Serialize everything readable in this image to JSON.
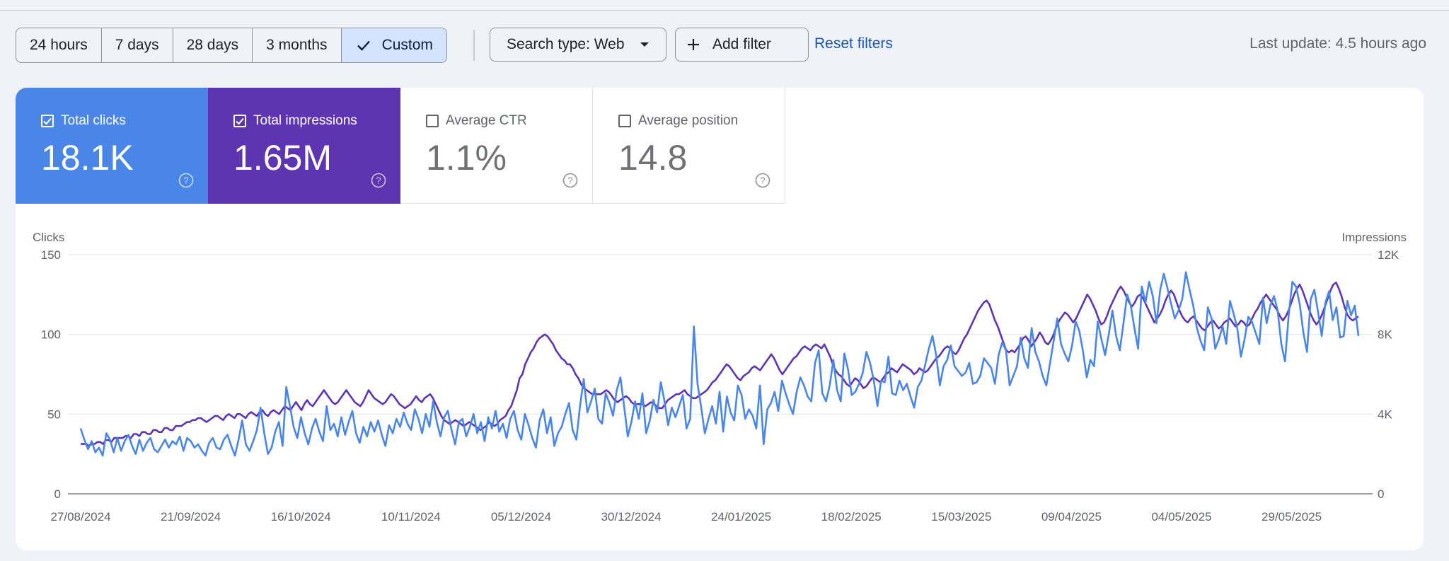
{
  "toolbar": {
    "ranges": [
      "24 hours",
      "7 days",
      "28 days",
      "3 months",
      "Custom"
    ],
    "active_range": "Custom",
    "search_type_label": "Search type: Web",
    "add_filter_label": "Add filter",
    "reset_label": "Reset filters",
    "last_update": "Last update: 4.5 hours ago"
  },
  "metrics": [
    {
      "label": "Total clicks",
      "value": "18.1K",
      "checked": true,
      "color": "#4a86e8"
    },
    {
      "label": "Total impressions",
      "value": "1.65M",
      "checked": true,
      "color": "#5e35b1"
    },
    {
      "label": "Average CTR",
      "value": "1.1%",
      "checked": false
    },
    {
      "label": "Average position",
      "value": "14.8",
      "checked": false
    }
  ],
  "chart_data": {
    "type": "line",
    "left_axis_title": "Clicks",
    "right_axis_title": "Impressions",
    "ylim_left": [
      0,
      150
    ],
    "ylim_right": [
      0,
      12000
    ],
    "left_ticks": [
      "0",
      "50",
      "100",
      "150"
    ],
    "right_ticks": [
      "0",
      "4K",
      "8K",
      "12K"
    ],
    "x_tick_labels": [
      "27/08/2024",
      "21/09/2024",
      "16/10/2024",
      "10/11/2024",
      "05/12/2024",
      "30/12/2024",
      "24/01/2025",
      "18/02/2025",
      "15/03/2025",
      "09/04/2025",
      "04/05/2025",
      "29/05/2025"
    ],
    "x_range": [
      "27/08/2024",
      "18/06/2025"
    ],
    "grid": true,
    "series": [
      {
        "axis": "left",
        "color": "#4a86e8",
        "values": [
          41,
          34,
          28,
          33,
          26,
          29,
          24,
          38,
          34,
          26,
          35,
          27,
          33,
          37,
          30,
          25,
          34,
          27,
          32,
          35,
          28,
          26,
          30,
          34,
          29,
          33,
          31,
          36,
          27,
          35,
          33,
          29,
          31,
          27,
          24,
          32,
          35,
          29,
          28,
          34,
          37,
          30,
          24,
          34,
          46,
          31,
          27,
          33,
          40,
          54,
          38,
          25,
          29,
          39,
          45,
          30,
          67,
          55,
          42,
          35,
          48,
          38,
          31,
          41,
          47,
          39,
          33,
          55,
          40,
          44,
          36,
          48,
          37,
          45,
          52,
          38,
          32,
          42,
          36,
          45,
          39,
          46,
          37,
          30,
          43,
          38,
          47,
          42,
          51,
          44,
          40,
          53,
          47,
          38,
          50,
          42,
          58,
          45,
          36,
          48,
          52,
          40,
          31,
          45,
          47,
          36,
          42,
          50,
          38,
          45,
          33,
          48,
          41,
          52,
          39,
          44,
          35,
          47,
          52,
          40,
          34,
          50,
          43,
          35,
          29,
          46,
          53,
          38,
          48,
          30,
          38,
          42,
          50,
          57,
          40,
          34,
          55,
          72,
          51,
          58,
          66,
          47,
          44,
          63,
          57,
          49,
          65,
          73,
          55,
          36,
          45,
          58,
          47,
          63,
          38,
          46,
          59,
          51,
          70,
          58,
          43,
          54,
          48,
          55,
          62,
          41,
          47,
          105,
          69,
          54,
          38,
          47,
          55,
          44,
          64,
          39,
          61,
          51,
          46,
          68,
          62,
          47,
          53,
          49,
          41,
          68,
          31,
          53,
          57,
          64,
          52,
          71,
          63,
          56,
          50,
          64,
          73,
          68,
          61,
          58,
          82,
          90,
          63,
          58,
          68,
          84,
          65,
          58,
          88,
          78,
          62,
          64,
          69,
          76,
          89,
          82,
          71,
          55,
          71,
          70,
          86,
          63,
          62,
          71,
          65,
          69,
          61,
          54,
          67,
          71,
          81,
          91,
          99,
          87,
          68,
          80,
          84,
          93,
          80,
          77,
          74,
          76,
          82,
          69,
          70,
          74,
          85,
          82,
          79,
          69,
          87,
          95,
          90,
          68,
          74,
          80,
          98,
          85,
          79,
          104,
          89,
          83,
          74,
          68,
          82,
          96,
          110,
          94,
          88,
          83,
          93,
          108,
          102,
          89,
          73,
          84,
          80,
          108,
          97,
          87,
          100,
          115,
          99,
          90,
          107,
          125,
          118,
          104,
          91,
          130,
          120,
          133,
          124,
          107,
          128,
          138,
          129,
          119,
          110,
          115,
          122,
          139,
          128,
          118,
          104,
          96,
          90,
          117,
          110,
          91,
          97,
          105,
          94,
          121,
          113,
          104,
          86,
          97,
          111,
          108,
          101,
          94,
          123,
          107,
          118,
          124,
          115,
          94,
          83,
          112,
          133,
          130,
          119,
          101,
          89,
          122,
          128,
          114,
          99,
          120,
          127,
          109,
          117,
          98,
          99,
          121,
          112,
          118,
          99
        ]
      },
      {
        "axis": "right",
        "color": "#5e35b1",
        "values": [
          2.5,
          2.5,
          2.5,
          2.4,
          2.5,
          2.5,
          2.6,
          2.6,
          2.5,
          2.7,
          2.7,
          2.6,
          2.8,
          2.8,
          2.8,
          2.8,
          2.9,
          2.9,
          2.8,
          3.0,
          3.0,
          2.9,
          3.1,
          3.1,
          3.0,
          3.0,
          3.2,
          3.2,
          3.1,
          3.1,
          3.3,
          3.3,
          3.2,
          3.2,
          3.4,
          3.4,
          3.4,
          3.5,
          3.6,
          3.6,
          3.7,
          3.7,
          3.8,
          3.8,
          3.7,
          3.6,
          3.7,
          3.8,
          3.9,
          3.9,
          3.8,
          3.7,
          3.9,
          4.0,
          3.9,
          3.8,
          4.0,
          4.0,
          3.9,
          3.8,
          4.0,
          4.1,
          4.0,
          3.9,
          4.1,
          4.2,
          4.0,
          3.9,
          4.1,
          4.2,
          4.1,
          4.0,
          4.2,
          4.4,
          4.3,
          4.2,
          4.4,
          4.6,
          4.4,
          4.2,
          4.5,
          4.7,
          4.5,
          4.4,
          4.6,
          4.8,
          5.0,
          5.2,
          5.0,
          4.8,
          4.6,
          4.5,
          4.6,
          4.8,
          5.0,
          5.2,
          5.0,
          4.8,
          4.6,
          4.5,
          4.4,
          4.6,
          4.9,
          5.2,
          5.0,
          4.8,
          4.7,
          4.6,
          4.5,
          4.6,
          4.8,
          5.0,
          4.9,
          4.7,
          4.5,
          4.4,
          4.3,
          4.4,
          4.5,
          4.7,
          4.9,
          4.7,
          4.6,
          4.8,
          4.9,
          5.0,
          4.8,
          4.5,
          4.2,
          3.9,
          3.7,
          3.6,
          3.5,
          3.6,
          3.7,
          3.6,
          3.5,
          3.4,
          3.5,
          3.6,
          3.5,
          3.4,
          3.3,
          3.2,
          3.3,
          3.4,
          3.6,
          3.5,
          3.4,
          3.5,
          3.7,
          3.8,
          3.9,
          4.2,
          4.4,
          4.8,
          5.2,
          5.8,
          6.0,
          6.5,
          6.8,
          7.1,
          7.3,
          7.6,
          7.8,
          7.9,
          8.0,
          7.9,
          7.7,
          7.5,
          7.2,
          7.0,
          6.8,
          6.7,
          6.5,
          6.5,
          6.3,
          6.0,
          5.8,
          5.5,
          5.3,
          5.2,
          5.1,
          5.0,
          5.0,
          5.0,
          5.0,
          5.1,
          5.2,
          5.1,
          4.9,
          4.7,
          4.6,
          4.7,
          4.8,
          4.9,
          4.8,
          4.6,
          4.5,
          4.5,
          4.5,
          4.5,
          4.4,
          4.5,
          4.6,
          4.5,
          4.4,
          4.3,
          4.3,
          4.5,
          4.7,
          4.8,
          4.9,
          5.0,
          5.0,
          5.1,
          5.2,
          5.0,
          4.9,
          4.8,
          4.8,
          4.9,
          5.0,
          5.1,
          5.2,
          5.4,
          5.6,
          5.7,
          5.9,
          6.1,
          6.3,
          6.5,
          6.4,
          6.2,
          6.0,
          5.8,
          5.7,
          5.9,
          6.0,
          6.1,
          6.3,
          6.4,
          6.3,
          6.2,
          6.4,
          6.6,
          6.8,
          7.0,
          6.8,
          6.5,
          6.2,
          6.0,
          6.2,
          6.4,
          6.6,
          6.8,
          6.9,
          7.1,
          7.3,
          7.4,
          7.3,
          7.2,
          7.4,
          7.5,
          7.4,
          7.3,
          7.5,
          7.2,
          6.9,
          6.5,
          6.2,
          6.0,
          5.9,
          5.7,
          5.5,
          5.4,
          5.6,
          5.8,
          5.7,
          5.5,
          5.3,
          5.4,
          5.6,
          5.8,
          5.8,
          5.7,
          5.6,
          5.8,
          6.0,
          6.1,
          6.3,
          6.2,
          6.1,
          6.3,
          6.5,
          6.4,
          6.3,
          6.2,
          6.0,
          6.1,
          6.3,
          6.2,
          6.1,
          6.2,
          6.4,
          6.6,
          6.8,
          6.9,
          7.1,
          7.3,
          7.4,
          7.3,
          7.1,
          7.0,
          7.2,
          7.5,
          7.8,
          8.0,
          8.3,
          8.6,
          8.9,
          9.2,
          9.4,
          9.6,
          9.7,
          9.5,
          9.1,
          8.7,
          8.4,
          8.0,
          7.6,
          7.2,
          7.1,
          7.2,
          7.1,
          7.3,
          7.5,
          7.8,
          7.9,
          7.7,
          7.4,
          7.6,
          7.8,
          8.1,
          7.9,
          7.6,
          7.5,
          7.7,
          8.0,
          8.4,
          8.7,
          8.9,
          9.1,
          9.0,
          8.8,
          8.6,
          8.8,
          9.1,
          9.4,
          9.7,
          10.0,
          9.8,
          9.5,
          9.2,
          8.8,
          8.5,
          8.6,
          8.9,
          9.3,
          9.6,
          9.9,
          10.2,
          10.4,
          10.2,
          9.9,
          9.6,
          9.4,
          9.6,
          9.9,
          10.0,
          9.8,
          9.5,
          9.2,
          8.9,
          8.6,
          8.8,
          9.0,
          9.3,
          9.7,
          10.0,
          10.2,
          10.0,
          9.6,
          9.2,
          8.9,
          8.7,
          8.6,
          8.8,
          8.9,
          8.7,
          8.5,
          8.3,
          8.2,
          8.4,
          8.6,
          8.7,
          8.5,
          8.3,
          8.4,
          8.6,
          8.7,
          8.8,
          8.6,
          8.4,
          8.5,
          8.7,
          8.6,
          8.4,
          8.5,
          8.8,
          9.1,
          9.3,
          9.6,
          9.8,
          10.0,
          9.8,
          9.6,
          9.4,
          9.2,
          8.9,
          8.7,
          8.9,
          9.2,
          9.6,
          10.0,
          10.3,
          10.5,
          10.2,
          9.8,
          9.4,
          9.0,
          8.7,
          8.5,
          8.7,
          9.0,
          9.4,
          9.8,
          10.2,
          10.5,
          10.6,
          10.3,
          9.9,
          9.4,
          9.0,
          8.8,
          8.7,
          8.8,
          8.9
        ]
      }
    ]
  }
}
